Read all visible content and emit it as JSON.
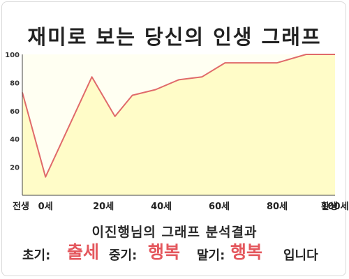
{
  "title": "재미로 보는 당신의 인생 그래프",
  "subtitle": "이진행님의 그래프 분석결과",
  "verdict": {
    "early_label": "초기:",
    "early_value": "출세",
    "mid_label": "중기:",
    "mid_value": "행복",
    "late_label": "말기:",
    "late_value": "행복",
    "suffix": "입니다"
  },
  "colors": {
    "line": "#e06a6a",
    "fill": "#fffcc8",
    "plot_bg": "#fffff2",
    "result": "#e4575d"
  },
  "chart_data": {
    "type": "area",
    "title": "재미로 보는 당신의 인생 그래프",
    "xlabel": "",
    "ylabel": "",
    "ylim": [
      0,
      100
    ],
    "yticks": [
      20,
      40,
      60,
      80,
      100
    ],
    "xlim": [
      -8,
      100
    ],
    "xticks": [
      {
        "value": -8,
        "label": "전생"
      },
      {
        "value": 0,
        "label": "0세"
      },
      {
        "value": 20,
        "label": "20세"
      },
      {
        "value": 40,
        "label": "40세"
      },
      {
        "value": 60,
        "label": "60세"
      },
      {
        "value": 80,
        "label": "80세"
      },
      {
        "value": 100,
        "label": "100세"
      },
      {
        "value": 120,
        "label": "환생"
      }
    ],
    "x": [
      -8,
      0,
      16,
      24,
      30,
      38,
      46,
      54,
      62,
      70,
      80,
      90,
      100
    ],
    "values": [
      73,
      13,
      84,
      56,
      71,
      75,
      82,
      84,
      94,
      94,
      94,
      100,
      100
    ],
    "grid": false,
    "legend": "none"
  }
}
